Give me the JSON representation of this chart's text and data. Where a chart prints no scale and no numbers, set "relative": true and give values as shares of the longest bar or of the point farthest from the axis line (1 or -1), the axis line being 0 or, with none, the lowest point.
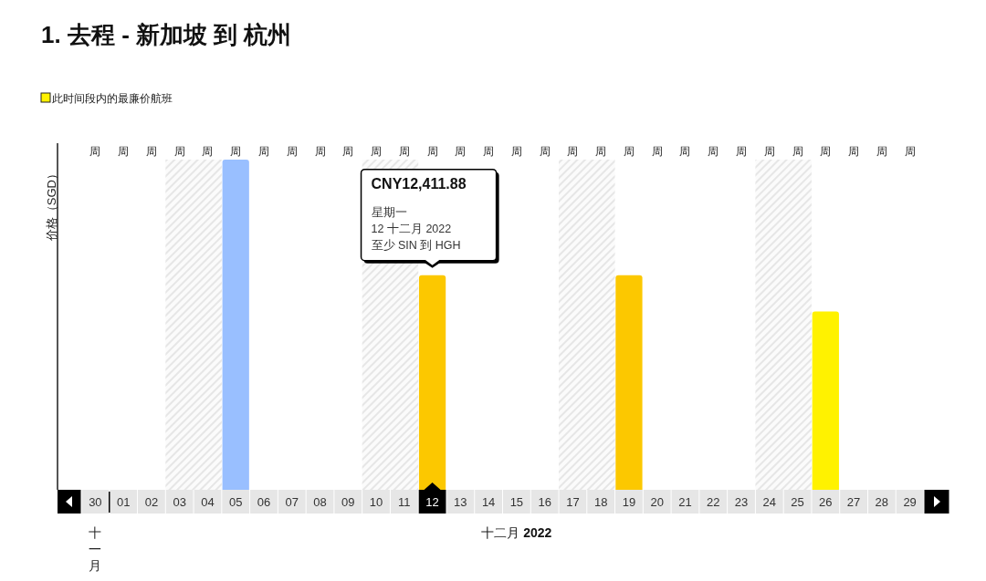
{
  "chart_data": {
    "type": "bar",
    "title": "1. 去程 - 新加坡 到 杭州",
    "ylabel": "价格（SGD）",
    "xlabel": "十二月 **2022**",
    "relative": true,
    "legend": "top left",
    "categories": [
      "30",
      "01",
      "02",
      "03",
      "04",
      "05",
      "06",
      "07",
      "08",
      "09",
      "10",
      "11",
      "12",
      "13",
      "14",
      "15",
      "16",
      "17",
      "18",
      "19",
      "20",
      "21",
      "22",
      "23",
      "24",
      "25",
      "26",
      "27",
      "28",
      "29"
    ],
    "series": [
      {
        "name": "此时间段内的最廉价航班",
        "color": "#fff200",
        "values": [
          null,
          null,
          null,
          null,
          null,
          null,
          null,
          null,
          null,
          null,
          null,
          null,
          null,
          null,
          null,
          null,
          null,
          null,
          null,
          null,
          null,
          null,
          null,
          null,
          null,
          null,
          0.54,
          null,
          null,
          null
        ]
      },
      {
        "color": "#fcc800",
        "values": [
          null,
          null,
          null,
          null,
          null,
          null,
          null,
          null,
          null,
          null,
          null,
          null,
          0.65,
          null,
          null,
          null,
          null,
          null,
          null,
          0.65,
          null,
          null,
          null,
          null,
          null,
          null,
          null,
          null,
          null,
          null
        ]
      },
      {
        "color": "#99bfff",
        "values": [
          null,
          null,
          null,
          null,
          null,
          1,
          null,
          null,
          null,
          null,
          null,
          null,
          null,
          null,
          null,
          null,
          null,
          null,
          null,
          null,
          null,
          null,
          null,
          null,
          null,
          null,
          null,
          null,
          null,
          null
        ]
      }
    ],
    "bands": [
      {
        "axis": "x",
        "from": "03",
        "to": "04",
        "color": "#dedede"
      },
      {
        "axis": "x",
        "from": "10",
        "to": "11",
        "color": "#dedede"
      },
      {
        "axis": "x",
        "from": "17",
        "to": "18",
        "color": "#dedede"
      },
      {
        "axis": "x",
        "from": "24",
        "to": "25",
        "color": "#dedede"
      }
    ],
    "annotations": [
      {
        "text": "**CNY12,411.88**\n星期一\n12 十二月 2022\n至少 SIN 到 HGH",
        "x": "12",
        "y": 0.65
      },
      "十一月",
      "周",
      "周",
      "周",
      "周",
      "周",
      "周",
      "周",
      "周",
      "周",
      "周",
      "周",
      "周",
      "周",
      "周",
      "周",
      "周",
      "周",
      "周",
      "周",
      "周",
      "周",
      "周",
      "周",
      "周",
      "周",
      "周",
      "周",
      "周",
      "周",
      "周"
    ]
  }
}
